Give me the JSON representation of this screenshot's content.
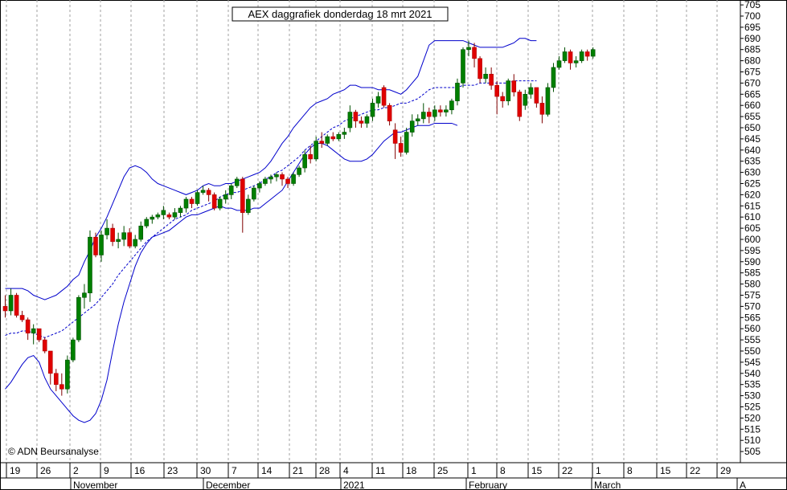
{
  "chart_data": {
    "type": "candlestick",
    "title": "AEX daggrafiek donderdag 18 mrt 2021",
    "copyright": "© ADN Beursanalyse",
    "ylim": [
      500,
      707
    ],
    "y_ticks": [
      505,
      510,
      515,
      520,
      525,
      530,
      535,
      540,
      545,
      550,
      555,
      560,
      565,
      570,
      575,
      580,
      585,
      590,
      595,
      600,
      605,
      610,
      615,
      620,
      625,
      630,
      635,
      640,
      645,
      650,
      655,
      660,
      665,
      670,
      675,
      680,
      685,
      690,
      695,
      700,
      705
    ],
    "x_day_labels": [
      "19",
      "26",
      "2",
      "9",
      "16",
      "23",
      "30",
      "7",
      "14",
      "21",
      "28",
      "4",
      "11",
      "18",
      "25",
      "1",
      "8",
      "15",
      "22",
      "1",
      "8",
      "15",
      "22",
      "29"
    ],
    "month_labels": [
      "November",
      "December",
      "2021",
      "February",
      "March",
      "A"
    ],
    "grid": "vertical dashed",
    "colors": {
      "up": "#008000",
      "down": "#e00000",
      "bands": "#0000cc",
      "background": "#ffffff",
      "grid": "#999999"
    },
    "series": [
      {
        "name": "candles",
        "ohlc": [
          [
            570,
            575,
            565,
            568
          ],
          [
            568,
            578,
            566,
            575
          ],
          [
            575,
            576,
            565,
            566
          ],
          [
            566,
            568,
            563,
            564
          ],
          [
            564,
            565,
            555,
            558
          ],
          [
            558,
            562,
            553,
            560
          ],
          [
            560,
            560,
            554,
            555
          ],
          [
            555,
            556,
            549,
            550
          ],
          [
            550,
            550,
            535,
            540
          ],
          [
            540,
            542,
            532,
            535
          ],
          [
            535,
            540,
            530,
            533
          ],
          [
            533,
            548,
            531,
            546
          ],
          [
            546,
            556,
            545,
            555
          ],
          [
            555,
            575,
            554,
            574
          ],
          [
            574,
            580,
            569,
            576
          ],
          [
            576,
            604,
            572,
            601
          ],
          [
            601,
            603,
            592,
            593
          ],
          [
            593,
            604,
            590,
            602
          ],
          [
            602,
            609,
            600,
            605
          ],
          [
            605,
            607,
            597,
            599
          ],
          [
            599,
            603,
            596,
            600
          ],
          [
            600,
            606,
            597,
            603
          ],
          [
            603,
            605,
            596,
            597
          ],
          [
            597,
            602,
            596,
            600
          ],
          [
            600,
            608,
            599,
            606
          ],
          [
            606,
            610,
            605,
            609
          ],
          [
            609,
            611,
            607,
            610
          ],
          [
            610,
            612,
            609,
            611
          ],
          [
            611,
            615,
            609,
            613
          ],
          [
            611,
            612,
            609,
            610
          ],
          [
            610,
            614,
            609,
            612
          ],
          [
            612,
            615,
            610,
            614
          ],
          [
            614,
            619,
            612,
            618
          ],
          [
            618,
            619,
            614,
            616
          ],
          [
            616,
            622,
            615,
            621
          ],
          [
            621,
            624,
            620,
            622
          ],
          [
            622,
            623,
            617,
            620
          ],
          [
            620,
            621,
            613,
            614
          ],
          [
            614,
            619,
            613,
            618
          ],
          [
            618,
            622,
            616,
            620
          ],
          [
            620,
            625,
            618,
            624
          ],
          [
            624,
            628,
            623,
            627
          ],
          [
            627,
            628,
            603,
            612
          ],
          [
            612,
            620,
            611,
            618
          ],
          [
            618,
            624,
            617,
            623
          ],
          [
            623,
            626,
            621,
            625
          ],
          [
            625,
            628,
            624,
            627
          ],
          [
            627,
            629,
            625,
            628
          ],
          [
            628,
            630,
            626,
            629
          ],
          [
            629,
            630,
            624,
            627
          ],
          [
            627,
            628,
            623,
            625
          ],
          [
            625,
            630,
            624,
            629
          ],
          [
            629,
            633,
            628,
            632
          ],
          [
            632,
            640,
            630,
            638
          ],
          [
            638,
            642,
            634,
            636
          ],
          [
            636,
            646,
            635,
            644
          ],
          [
            644,
            648,
            641,
            643
          ],
          [
            643,
            647,
            642,
            646
          ],
          [
            646,
            648,
            644,
            645
          ],
          [
            645,
            648,
            644,
            647
          ],
          [
            647,
            650,
            645,
            648
          ],
          [
            650,
            660,
            648,
            657
          ],
          [
            657,
            658,
            650,
            653
          ],
          [
            653,
            655,
            650,
            652
          ],
          [
            652,
            656,
            650,
            655
          ],
          [
            655,
            663,
            653,
            661
          ],
          [
            661,
            666,
            659,
            664
          ],
          [
            668,
            669,
            659,
            660
          ],
          [
            660,
            661,
            651,
            653
          ],
          [
            649,
            652,
            636,
            643
          ],
          [
            643,
            646,
            637,
            639
          ],
          [
            639,
            650,
            638,
            648
          ],
          [
            648,
            656,
            646,
            653
          ],
          [
            653,
            656,
            651,
            654
          ],
          [
            654,
            661,
            652,
            657
          ],
          [
            657,
            659,
            652,
            655
          ],
          [
            655,
            660,
            653,
            658
          ],
          [
            658,
            660,
            655,
            657
          ],
          [
            657,
            660,
            655,
            658
          ],
          [
            658,
            663,
            656,
            662
          ],
          [
            662,
            672,
            660,
            670
          ],
          [
            670,
            686,
            668,
            685
          ],
          [
            685,
            689,
            682,
            686
          ],
          [
            686,
            688,
            677,
            681
          ],
          [
            681,
            682,
            670,
            672
          ],
          [
            672,
            677,
            670,
            674
          ],
          [
            674,
            677,
            667,
            669
          ],
          [
            669,
            671,
            656,
            664
          ],
          [
            664,
            666,
            659,
            662
          ],
          [
            662,
            672,
            660,
            671
          ],
          [
            671,
            674,
            664,
            666
          ],
          [
            666,
            667,
            653,
            655
          ],
          [
            660,
            667,
            658,
            665
          ],
          [
            665,
            670,
            663,
            668
          ],
          [
            668,
            668,
            659,
            661
          ],
          [
            661,
            664,
            652,
            656
          ],
          [
            656,
            670,
            655,
            668
          ],
          [
            668,
            679,
            666,
            677
          ],
          [
            677,
            682,
            676,
            680
          ],
          [
            680,
            686,
            679,
            684
          ],
          [
            684,
            685,
            676,
            679
          ],
          [
            679,
            682,
            677,
            680
          ],
          [
            680,
            685,
            679,
            684
          ],
          [
            684,
            685,
            680,
            682
          ],
          [
            682,
            686,
            681,
            685
          ]
        ]
      },
      {
        "name": "upper band",
        "values": [
          578,
          578,
          578,
          578,
          577,
          575,
          574,
          573,
          574,
          575,
          577,
          579,
          582,
          584,
          590,
          595,
          601,
          605,
          610,
          616,
          622,
          628,
          632,
          633,
          632,
          630,
          627,
          625,
          624,
          623,
          622,
          621,
          620,
          621,
          622,
          624,
          625,
          624,
          624,
          625,
          625,
          626,
          627,
          628,
          629,
          630,
          632,
          635,
          639,
          643,
          646,
          650,
          653,
          656,
          659,
          661,
          662,
          663,
          665,
          666,
          667,
          669,
          669,
          668,
          668,
          668,
          667,
          667,
          667,
          666,
          665,
          667,
          670,
          673,
          680,
          687,
          689,
          689,
          689,
          689,
          689,
          689,
          688,
          687,
          686,
          686,
          686,
          686,
          686,
          687,
          688,
          690,
          690,
          689,
          689
        ]
      },
      {
        "name": "middle band",
        "values": [
          557,
          558,
          558,
          559,
          559,
          558,
          557,
          556,
          557,
          558,
          559,
          561,
          563,
          565,
          567,
          569,
          571,
          574,
          577,
          580,
          584,
          587,
          590,
          593,
          596,
          599,
          601,
          603,
          605,
          607,
          609,
          610,
          611,
          613,
          614,
          615,
          616,
          617,
          619,
          620,
          621,
          621,
          622,
          623,
          624,
          625,
          627,
          628,
          630,
          631,
          633,
          635,
          637,
          640,
          642,
          644,
          646,
          648,
          650,
          651,
          653,
          654,
          655,
          656,
          657,
          658,
          658,
          659,
          659,
          660,
          661,
          661,
          662,
          663,
          665,
          667,
          668,
          668,
          668,
          668,
          668,
          669,
          669,
          669,
          670,
          670,
          670,
          670,
          670,
          670,
          671,
          671,
          671,
          671,
          671
        ]
      },
      {
        "name": "lower band",
        "values": [
          533,
          536,
          540,
          544,
          547,
          548,
          545,
          538,
          533,
          530,
          527,
          524,
          521,
          519,
          518,
          519,
          522,
          528,
          537,
          550,
          562,
          572,
          580,
          588,
          594,
          598,
          601,
          602,
          603,
          604,
          606,
          608,
          610,
          611,
          611,
          612,
          613,
          614,
          615,
          614,
          614,
          613,
          613,
          613,
          614,
          614,
          616,
          618,
          620,
          622,
          626,
          630,
          634,
          638,
          641,
          643,
          643,
          642,
          640,
          638,
          636,
          635,
          635,
          635,
          636,
          638,
          641,
          644,
          646,
          648,
          648,
          649,
          650,
          651,
          651,
          651,
          652,
          652,
          652,
          652,
          651
        ]
      }
    ]
  }
}
